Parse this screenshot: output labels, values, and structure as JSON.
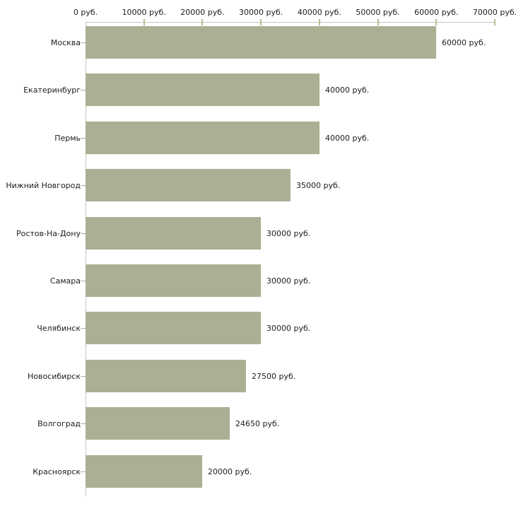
{
  "chart_data": {
    "type": "bar",
    "orientation": "horizontal",
    "title": "",
    "xlabel": "",
    "ylabel": "",
    "unit": "руб.",
    "xlim": [
      0,
      70000
    ],
    "grid": false,
    "legend": false,
    "x_ticks": [
      {
        "value": 0,
        "label": "0 руб."
      },
      {
        "value": 10000,
        "label": "10000 руб."
      },
      {
        "value": 20000,
        "label": "20000 руб."
      },
      {
        "value": 30000,
        "label": "30000 руб."
      },
      {
        "value": 40000,
        "label": "40000 руб."
      },
      {
        "value": 50000,
        "label": "50000 руб."
      },
      {
        "value": 60000,
        "label": "60000 руб."
      },
      {
        "value": 70000,
        "label": "70000 руб."
      }
    ],
    "categories": [
      "Москва",
      "Екатеринбург",
      "Пермь",
      "Нижний Новгород",
      "Ростов-На-Дону",
      "Самара",
      "Челябинск",
      "Новосибирск",
      "Волгоград",
      "Красноярск"
    ],
    "values": [
      60000,
      40000,
      40000,
      35000,
      30000,
      30000,
      30000,
      27500,
      24650,
      20000
    ],
    "bars": [
      {
        "category": "Москва",
        "value": 60000,
        "value_label": "60000 руб."
      },
      {
        "category": "Екатеринбург",
        "value": 40000,
        "value_label": "40000 руб."
      },
      {
        "category": "Пермь",
        "value": 40000,
        "value_label": "40000 руб."
      },
      {
        "category": "Нижний Новгород",
        "value": 35000,
        "value_label": "35000 руб."
      },
      {
        "category": "Ростов-На-Дону",
        "value": 30000,
        "value_label": "30000 руб."
      },
      {
        "category": "Самара",
        "value": 30000,
        "value_label": "30000 руб."
      },
      {
        "category": "Челябинск",
        "value": 30000,
        "value_label": "30000 руб."
      },
      {
        "category": "Новосибирск",
        "value": 27500,
        "value_label": "27500 руб."
      },
      {
        "category": "Волгоград",
        "value": 24650,
        "value_label": "24650 руб."
      },
      {
        "category": "Красноярск",
        "value": 20000,
        "value_label": "20000 руб."
      }
    ],
    "colors": {
      "bar": "#abaf93",
      "axis_line": "#c6c6c6",
      "axis_tick": "#babc8d",
      "category_tick": "#a9a99f",
      "text": "#1c1c1c",
      "background": "#ffffff"
    }
  }
}
